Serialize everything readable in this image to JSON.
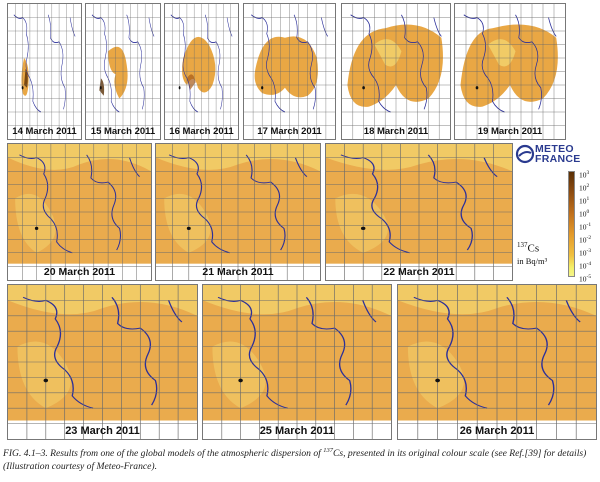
{
  "panels": [
    {
      "date": "14 March 2011",
      "size": "small",
      "stage": 0
    },
    {
      "date": "15 March 2011",
      "size": "small",
      "stage": 1
    },
    {
      "date": "16 March 2011",
      "size": "small",
      "stage": 2
    },
    {
      "date": "17 March 2011",
      "size": "small",
      "stage": 3
    },
    {
      "date": "18 March 2011",
      "size": "small",
      "stage": 4
    },
    {
      "date": "19 March 2011",
      "size": "small",
      "stage": 5
    },
    {
      "date": "20 March 2011",
      "size": "med",
      "stage": 6
    },
    {
      "date": "21 March 2011",
      "size": "med",
      "stage": 7
    },
    {
      "date": "22 March 2011",
      "size": "med",
      "stage": 8
    },
    {
      "date": "23 March 2011",
      "size": "large",
      "stage": 9
    },
    {
      "date": "25 March 2011",
      "size": "large",
      "stage": 10
    },
    {
      "date": "26 March 2011",
      "size": "large",
      "stage": 11
    }
  ],
  "legend": {
    "logo_line1": "METEO",
    "logo_line2": "FRANCE",
    "species_mass": "137",
    "species_element": "Cs",
    "unit": "in Bq/m³",
    "ticks": [
      {
        "base": "10",
        "exp": "3"
      },
      {
        "base": "10",
        "exp": "2"
      },
      {
        "base": "10",
        "exp": "1"
      },
      {
        "base": "10",
        "exp": "0"
      },
      {
        "base": "10",
        "exp": "-1"
      },
      {
        "base": "10",
        "exp": "-2"
      },
      {
        "base": "10",
        "exp": "-3"
      },
      {
        "base": "10",
        "exp": "-4"
      },
      {
        "base": "10",
        "exp": "-5"
      }
    ],
    "colors": {
      "high": "#5a2f05",
      "mid": "#e39a2a",
      "low": "#f4f48a"
    }
  },
  "caption": {
    "part1": "FIG. 4.1–3. Results from one of the global models of the atmospheric dispersion of ",
    "sup": "137",
    "part2": "Cs, presented in its original colour scale (see Ref.[39] for details) (Illustration courtesy of Meteo-France)."
  },
  "colors": {
    "plume": "#e8a23a",
    "plume_light": "#f2cf6a",
    "coast": "#2b2f9a",
    "grid": "#6b6b6b"
  }
}
